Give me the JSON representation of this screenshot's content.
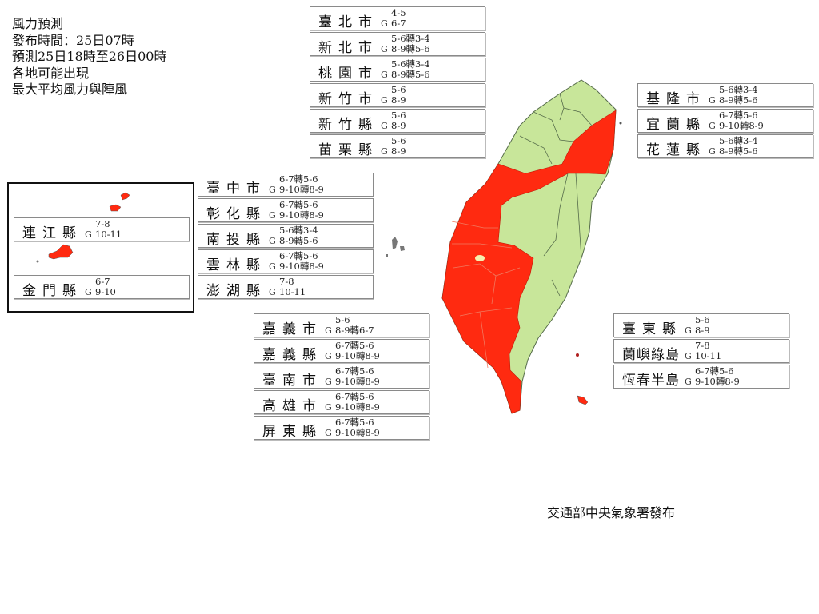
{
  "title": {
    "lines": [
      "風力預測",
      "發布時間：25日07時",
      "預測25日18時至26日00時",
      "各地可能出現",
      "最大平均風力與陣風"
    ]
  },
  "gust_prefix": "G",
  "colors": {
    "warning": "#ff2a10",
    "normal": "#c8e69a",
    "border": "#556b4a"
  },
  "regions": [
    {
      "name": "臺北市",
      "wind": "4-5",
      "gust": "6-7",
      "level": "normal"
    },
    {
      "name": "新北市",
      "wind": "5-6轉3-4",
      "gust": "8-9轉5-6",
      "level": "normal"
    },
    {
      "name": "桃園市",
      "wind": "5-6轉3-4",
      "gust": "8-9轉5-6",
      "level": "normal"
    },
    {
      "name": "新竹市",
      "wind": "5-6",
      "gust": "8-9",
      "level": "normal"
    },
    {
      "name": "新竹縣",
      "wind": "5-6",
      "gust": "8-9",
      "level": "normal"
    },
    {
      "name": "苗栗縣",
      "wind": "5-6",
      "gust": "8-9",
      "level": "normal"
    },
    {
      "name": "臺中市",
      "wind": "6-7轉5-6",
      "gust": "9-10轉8-9",
      "level": "warning"
    },
    {
      "name": "彰化縣",
      "wind": "6-7轉5-6",
      "gust": "9-10轉8-9",
      "level": "warning"
    },
    {
      "name": "南投縣",
      "wind": "5-6轉3-4",
      "gust": "8-9轉5-6",
      "level": "normal"
    },
    {
      "name": "雲林縣",
      "wind": "6-7轉5-6",
      "gust": "9-10轉8-9",
      "level": "warning"
    },
    {
      "name": "澎湖縣",
      "wind": "7-8",
      "gust": "10-11",
      "level": "warning"
    },
    {
      "name": "嘉義市",
      "wind": "5-6",
      "gust": "8-9轉6-7",
      "level": "normal"
    },
    {
      "name": "嘉義縣",
      "wind": "6-7轉5-6",
      "gust": "9-10轉8-9",
      "level": "warning"
    },
    {
      "name": "臺南市",
      "wind": "6-7轉5-6",
      "gust": "9-10轉8-9",
      "level": "warning"
    },
    {
      "name": "高雄市",
      "wind": "6-7轉5-6",
      "gust": "9-10轉8-9",
      "level": "warning"
    },
    {
      "name": "屏東縣",
      "wind": "6-7轉5-6",
      "gust": "9-10轉8-9",
      "level": "warning"
    },
    {
      "name": "基隆市",
      "wind": "5-6轉3-4",
      "gust": "8-9轉5-6",
      "level": "normal"
    },
    {
      "name": "宜蘭縣",
      "wind": "6-7轉5-6",
      "gust": "9-10轉8-9",
      "level": "warning"
    },
    {
      "name": "花蓮縣",
      "wind": "5-6轉3-4",
      "gust": "8-9轉5-6",
      "level": "normal"
    },
    {
      "name": "臺東縣",
      "wind": "5-6",
      "gust": "8-9",
      "level": "normal"
    },
    {
      "name": "蘭嶼綠島",
      "wind": "7-8",
      "gust": "10-11",
      "level": "warning"
    },
    {
      "name": "恆春半島",
      "wind": "6-7轉5-6",
      "gust": "9-10轉8-9",
      "level": "warning"
    },
    {
      "name": "連江縣",
      "wind": "7-8",
      "gust": "10-11",
      "level": "warning"
    },
    {
      "name": "金門縣",
      "wind": "6-7",
      "gust": "9-10",
      "level": "warning"
    }
  ],
  "footer": "交通部中央氣象署發布"
}
